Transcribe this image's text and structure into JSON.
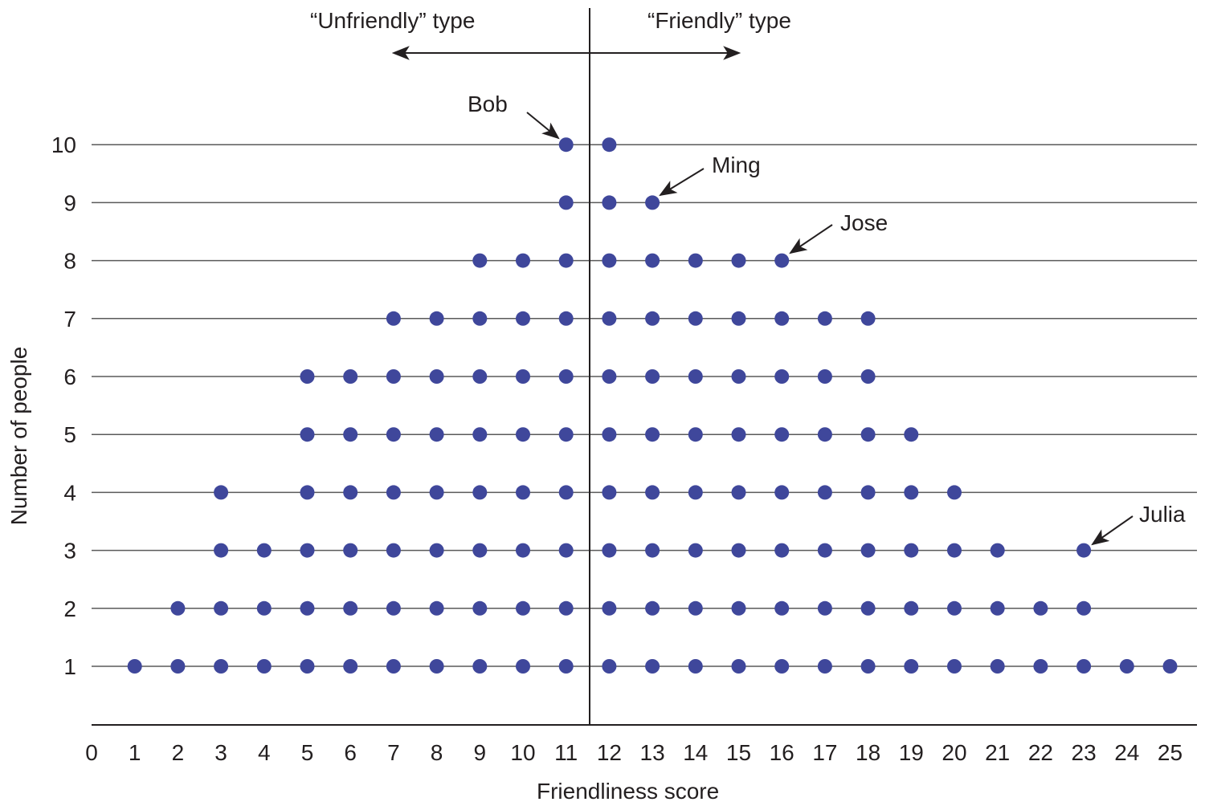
{
  "chart_data": {
    "type": "scatter",
    "subtype": "dot-plot",
    "title": "",
    "xlabel": "Friendliness score",
    "ylabel": "Number of people",
    "xlim": [
      0,
      25
    ],
    "ylim": [
      0,
      10
    ],
    "x_ticks": [
      0,
      1,
      2,
      3,
      4,
      5,
      6,
      7,
      8,
      9,
      10,
      11,
      12,
      13,
      14,
      15,
      16,
      17,
      18,
      19,
      20,
      21,
      22,
      23,
      24,
      25
    ],
    "y_ticks": [
      1,
      2,
      3,
      4,
      5,
      6,
      7,
      8,
      9,
      10
    ],
    "grid": "horizontal",
    "dot_color": "#3f479b",
    "categories": [
      1,
      2,
      3,
      4,
      5,
      6,
      7,
      8,
      9,
      10,
      11,
      12,
      13,
      14,
      15,
      16,
      17,
      18,
      19,
      20,
      21,
      22,
      23,
      24,
      25
    ],
    "values": [
      1,
      2,
      4,
      3,
      6,
      6,
      7,
      7,
      8,
      8,
      10,
      10,
      9,
      8,
      8,
      8,
      7,
      7,
      5,
      4,
      3,
      2,
      3,
      1,
      1
    ],
    "divider": {
      "x": 11.5
    },
    "regions": [
      {
        "label": "“Unfriendly” type",
        "direction": "left"
      },
      {
        "label": "“Friendly” type",
        "direction": "right"
      }
    ],
    "annotations": [
      {
        "text": "Bob",
        "x": 11,
        "y": 10
      },
      {
        "text": "Ming",
        "x": 13,
        "y": 9
      },
      {
        "text": "Jose",
        "x": 16,
        "y": 8
      },
      {
        "text": "Julia",
        "x": 23,
        "y": 3
      }
    ]
  },
  "labels": {
    "unfriendly": "“Unfriendly” type",
    "friendly": "“Friendly” type",
    "xlabel": "Friendliness score",
    "ylabel": "Number of people",
    "bob": "Bob",
    "ming": "Ming",
    "jose": "Jose",
    "julia": "Julia"
  }
}
